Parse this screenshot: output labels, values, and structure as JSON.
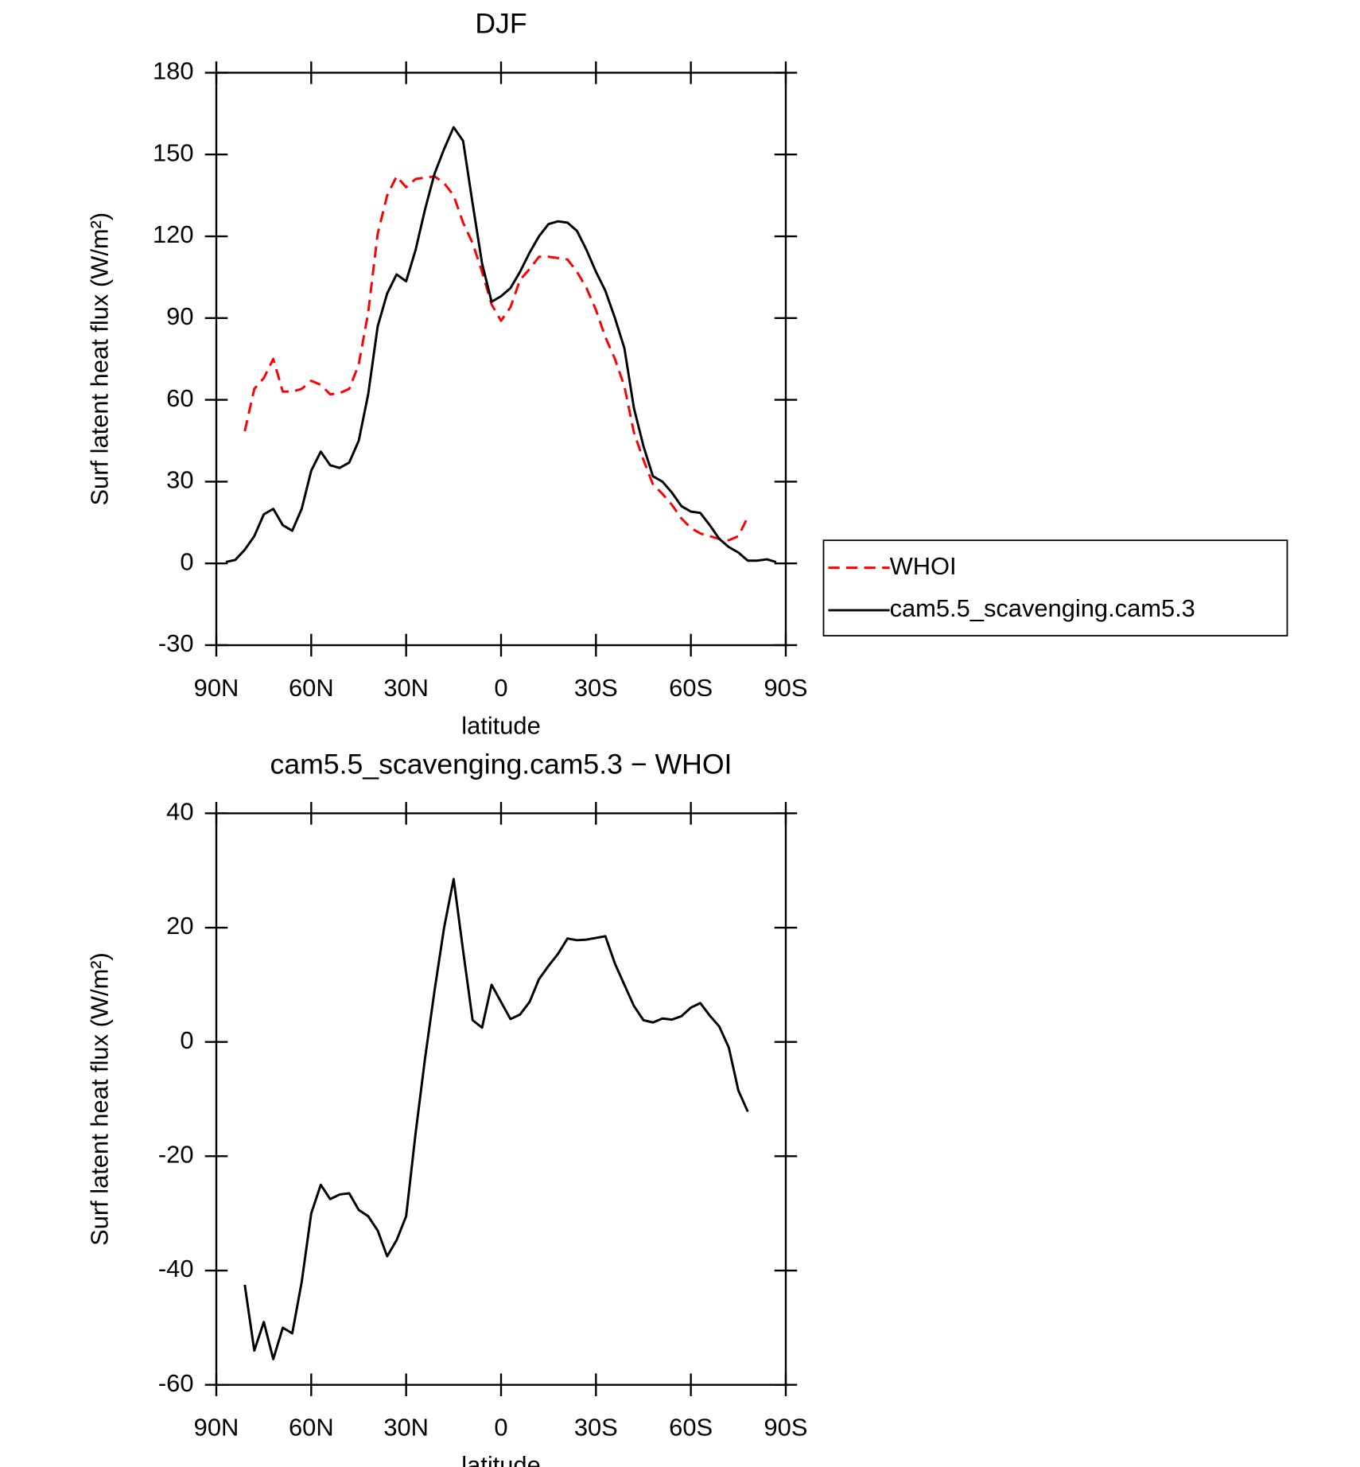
{
  "chart_data": [
    {
      "type": "line",
      "title": "DJF",
      "x_label": "latitude",
      "y_label": "Surf latent heat flux (W/m²)",
      "x": [
        87,
        84,
        81,
        78,
        75,
        72,
        69,
        66,
        63,
        60,
        57,
        54,
        51,
        48,
        45,
        42,
        39,
        36,
        33,
        30,
        27,
        24,
        21,
        18,
        15,
        12,
        9,
        6,
        3,
        0,
        -3,
        -6,
        -9,
        -12,
        -15,
        -18,
        -21,
        -24,
        -27,
        -30,
        -33,
        -36,
        -39,
        -42,
        -45,
        -48,
        -51,
        -54,
        -57,
        -60,
        -63,
        -66,
        -69,
        -72,
        -75,
        -78,
        -81,
        -84,
        -87
      ],
      "series": [
        {
          "name": "WHOI",
          "color": "#ff0000",
          "dashed": true,
          "values": [
            null,
            null,
            48.5,
            64,
            68,
            75,
            63,
            63,
            64,
            67,
            65.5,
            62,
            62.5,
            64,
            73,
            92,
            121,
            135,
            142,
            138,
            141,
            141.5,
            142,
            139.5,
            135,
            125,
            117.5,
            107,
            95,
            89,
            94,
            104,
            108,
            112.5,
            112.5,
            112,
            111.5,
            107,
            101,
            93,
            83,
            75,
            65,
            48,
            38,
            29,
            25.5,
            21.5,
            16.5,
            13,
            11,
            10,
            9,
            8.5,
            10,
            17,
            null,
            null,
            null
          ]
        },
        {
          "name": "cam5.5_scavenging.cam5.3",
          "color": "#000000",
          "dashed": false,
          "values": [
            0.5,
            1.3,
            5,
            10,
            18,
            20,
            14,
            12,
            20,
            34,
            41,
            36,
            35,
            37,
            45,
            62,
            87,
            99,
            106,
            103.5,
            115,
            130,
            143,
            152,
            160,
            155,
            132,
            110,
            96,
            98,
            101,
            107,
            114,
            120,
            124.5,
            125.5,
            125,
            122,
            115,
            107,
            100,
            90,
            79,
            57,
            43,
            32,
            30,
            26,
            21,
            19,
            18.5,
            14,
            9,
            6,
            4,
            1,
            1,
            1.5,
            0.5
          ]
        }
      ],
      "xlim": [
        90,
        -90
      ],
      "xticks": [
        {
          "value": 90,
          "label": "90N"
        },
        {
          "value": 60,
          "label": "60N"
        },
        {
          "value": 30,
          "label": "30N"
        },
        0,
        {
          "value": -30,
          "label": "30S"
        },
        {
          "value": -60,
          "label": "60S"
        },
        {
          "value": -90,
          "label": "90S"
        }
      ],
      "ylim": [
        -30,
        180
      ],
      "yticks": [
        -30,
        0,
        30,
        60,
        90,
        120,
        150,
        180
      ],
      "legend": "right"
    },
    {
      "type": "line",
      "title": "cam5.5_scavenging.cam5.3 − WHOI",
      "x_label": "latitude",
      "y_label": "Surf latent heat flux (W/m²)",
      "x": [
        81,
        78,
        75,
        72,
        69,
        66,
        63,
        60,
        57,
        54,
        51,
        48,
        45,
        42,
        39,
        36,
        33,
        30,
        27,
        24,
        21,
        18,
        15,
        12,
        9,
        6,
        3,
        0,
        -3,
        -6,
        -9,
        -12,
        -15,
        -18,
        -21,
        -24,
        -27,
        -30,
        -33,
        -36,
        -39,
        -42,
        -45,
        -48,
        -51,
        -54,
        -57,
        -60,
        -63,
        -66,
        -69,
        -72,
        -75,
        -78
      ],
      "color": "#000000",
      "values": [
        -42.5,
        -54,
        -49,
        -55.5,
        -50,
        -51,
        -42,
        -30,
        -25,
        -27.5,
        -26.7,
        -26.5,
        -29.4,
        -30.5,
        -33,
        -37.5,
        -34.7,
        -30.5,
        -16,
        -2.8,
        9,
        20,
        28.5,
        16,
        3.8,
        2.5,
        10,
        7,
        4,
        4.8,
        7,
        11,
        13.3,
        15.4,
        18.1,
        17.8,
        17.9,
        18.2,
        18.5,
        13.7,
        10,
        6.3,
        3.8,
        3.4,
        4.1,
        3.9,
        4.5,
        6,
        6.8,
        4.6,
        2.7,
        -1,
        -8.5,
        -12.2
      ],
      "xlim": [
        90,
        -90
      ],
      "xticks": [
        {
          "value": 90,
          "label": "90N"
        },
        {
          "value": 60,
          "label": "60N"
        },
        {
          "value": 30,
          "label": "30N"
        },
        0,
        {
          "value": -30,
          "label": "30S"
        },
        {
          "value": -60,
          "label": "60S"
        },
        {
          "value": -90,
          "label": "90S"
        }
      ],
      "ylim": [
        -60,
        40
      ],
      "yticks": [
        -60,
        -40,
        -20,
        0,
        20,
        40
      ]
    }
  ]
}
